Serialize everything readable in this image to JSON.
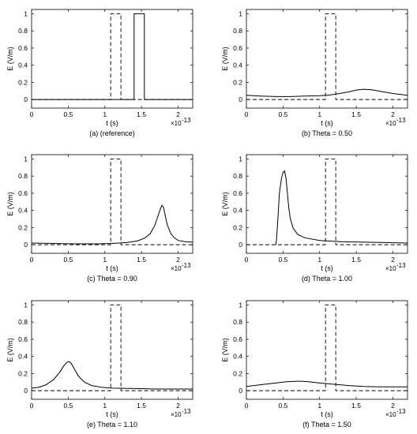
{
  "chart_data": [
    {
      "type": "line",
      "caption": "(a) (reference)",
      "xlabel": "t (s)",
      "ylabel": "E (V/m)",
      "x_multiplier_label": "×10",
      "x_multiplier_exp": "-13",
      "xlim": [
        0,
        2.2
      ],
      "ylim": [
        -0.1,
        1.05
      ],
      "xticks": [
        "0",
        "0.5",
        "1",
        "1.5",
        "2"
      ],
      "yticks": [
        "0",
        "0.2",
        "0.4",
        "0.6",
        "0.8",
        "1"
      ],
      "series": [
        {
          "style": "dashed",
          "x": [
            0,
            1.08,
            1.08,
            1.22,
            1.22,
            2.2
          ],
          "y": [
            0,
            0,
            1,
            1,
            0,
            0
          ]
        },
        {
          "style": "solid",
          "x": [
            0,
            1.4,
            1.4,
            1.4,
            1.4,
            1.54,
            1.54,
            1.54,
            1.54,
            2.2
          ],
          "y": [
            0,
            0,
            0,
            1,
            1,
            1,
            1,
            0,
            0,
            0
          ]
        }
      ]
    },
    {
      "type": "line",
      "caption": "(b) Theta = 0.50",
      "xlabel": "t (s)",
      "ylabel": "E (V/m)",
      "x_multiplier_label": "×10",
      "x_multiplier_exp": "-13",
      "xlim": [
        0,
        2.2
      ],
      "ylim": [
        -0.1,
        1.05
      ],
      "xticks": [
        "0",
        "0.5",
        "1",
        "1.5",
        "2"
      ],
      "yticks": [
        "0",
        "0.2",
        "0.4",
        "0.6",
        "0.8",
        "1"
      ],
      "series": [
        {
          "style": "dashed",
          "x": [
            0,
            1.08,
            1.08,
            1.22,
            1.22,
            2.2
          ],
          "y": [
            0,
            0,
            1,
            1,
            0,
            0
          ]
        },
        {
          "style": "solid",
          "x": [
            0,
            0.2,
            0.4,
            0.6,
            0.8,
            1.0,
            1.1,
            1.2,
            1.3,
            1.4,
            1.5,
            1.6,
            1.7,
            1.8,
            1.9,
            2.0,
            2.1,
            2.2
          ],
          "y": [
            0.05,
            0.04,
            0.035,
            0.035,
            0.04,
            0.045,
            0.05,
            0.06,
            0.075,
            0.09,
            0.11,
            0.12,
            0.115,
            0.1,
            0.085,
            0.07,
            0.06,
            0.05
          ]
        }
      ]
    },
    {
      "type": "line",
      "caption": "(c) Theta = 0.90",
      "xlabel": "t (s)",
      "ylabel": "E (V/m)",
      "x_multiplier_label": "×10",
      "x_multiplier_exp": "-13",
      "xlim": [
        0,
        2.2
      ],
      "ylim": [
        -0.1,
        1.05
      ],
      "xticks": [
        "0",
        "0.5",
        "1",
        "1.5",
        "2"
      ],
      "yticks": [
        "0",
        "0.2",
        "0.4",
        "0.6",
        "0.8",
        "1"
      ],
      "series": [
        {
          "style": "dashed",
          "x": [
            0,
            1.08,
            1.08,
            1.22,
            1.22,
            2.2
          ],
          "y": [
            0,
            0,
            1,
            1,
            0,
            0
          ]
        },
        {
          "style": "solid",
          "x": [
            0,
            0.3,
            0.6,
            0.9,
            1.1,
            1.3,
            1.45,
            1.55,
            1.62,
            1.68,
            1.72,
            1.76,
            1.78,
            1.8,
            1.82,
            1.85,
            1.9,
            1.95,
            2.0,
            2.1,
            2.2
          ],
          "y": [
            0.02,
            0.015,
            0.01,
            0.01,
            0.015,
            0.025,
            0.045,
            0.08,
            0.13,
            0.22,
            0.32,
            0.42,
            0.46,
            0.44,
            0.36,
            0.24,
            0.13,
            0.08,
            0.05,
            0.035,
            0.03
          ]
        }
      ]
    },
    {
      "type": "line",
      "caption": "(d) Theta = 1.00",
      "xlabel": "t (s)",
      "ylabel": "E (V/m)",
      "x_multiplier_label": "×10",
      "x_multiplier_exp": "-13",
      "xlim": [
        0,
        2.2
      ],
      "ylim": [
        -0.1,
        1.05
      ],
      "xticks": [
        "0",
        "0.5",
        "1",
        "1.5",
        "2"
      ],
      "yticks": [
        "0",
        "0.2",
        "0.4",
        "0.6",
        "0.8",
        "1"
      ],
      "series": [
        {
          "style": "dashed",
          "x": [
            0,
            1.08,
            1.08,
            1.22,
            1.22,
            2.2
          ],
          "y": [
            0,
            0,
            1,
            1,
            0,
            0
          ]
        },
        {
          "style": "solid",
          "x": [
            0.4,
            0.41,
            0.43,
            0.45,
            0.48,
            0.5,
            0.52,
            0.54,
            0.56,
            0.58,
            0.6,
            0.64,
            0.7,
            0.8,
            1.0,
            1.3,
            1.6,
            1.9,
            2.2
          ],
          "y": [
            0,
            0.05,
            0.3,
            0.6,
            0.78,
            0.84,
            0.86,
            0.78,
            0.6,
            0.42,
            0.3,
            0.19,
            0.12,
            0.08,
            0.05,
            0.035,
            0.03,
            0.025,
            0.02
          ]
        }
      ]
    },
    {
      "type": "line",
      "caption": "(e) Theta = 1.10",
      "xlabel": "t (s)",
      "ylabel": "E (V/m)",
      "x_multiplier_label": "×10",
      "x_multiplier_exp": "-13",
      "xlim": [
        0,
        2.2
      ],
      "ylim": [
        -0.1,
        1.05
      ],
      "xticks": [
        "0",
        "0.5",
        "1",
        "1.5",
        "2"
      ],
      "yticks": [
        "0",
        "0.2",
        "0.4",
        "0.6",
        "0.8",
        "1"
      ],
      "series": [
        {
          "style": "dashed",
          "x": [
            0,
            1.08,
            1.08,
            1.22,
            1.22,
            2.2
          ],
          "y": [
            0,
            0,
            1,
            1,
            0,
            0
          ]
        },
        {
          "style": "solid",
          "x": [
            0,
            0.1,
            0.2,
            0.3,
            0.38,
            0.44,
            0.48,
            0.51,
            0.54,
            0.58,
            0.64,
            0.72,
            0.82,
            0.95,
            1.1,
            1.4,
            1.7,
            2.0,
            2.2
          ],
          "y": [
            0.03,
            0.04,
            0.07,
            0.13,
            0.21,
            0.29,
            0.33,
            0.34,
            0.32,
            0.26,
            0.17,
            0.1,
            0.06,
            0.04,
            0.03,
            0.025,
            0.02,
            0.02,
            0.02
          ]
        }
      ]
    },
    {
      "type": "line",
      "caption": "(f) Theta = 1.50",
      "xlabel": "t (s)",
      "ylabel": "E (V/m)",
      "x_multiplier_label": "×10",
      "x_multiplier_exp": "-13",
      "xlim": [
        0,
        2.2
      ],
      "ylim": [
        -0.1,
        1.05
      ],
      "xticks": [
        "0",
        "0.5",
        "1",
        "1.5",
        "2"
      ],
      "yticks": [
        "0",
        "0.2",
        "0.4",
        "0.6",
        "0.8",
        "1"
      ],
      "series": [
        {
          "style": "dashed",
          "x": [
            0,
            1.08,
            1.08,
            1.22,
            1.22,
            2.2
          ],
          "y": [
            0,
            0,
            1,
            1,
            0,
            0
          ]
        },
        {
          "style": "solid",
          "x": [
            0,
            0.2,
            0.4,
            0.55,
            0.7,
            0.75,
            0.85,
            1.0,
            1.2,
            1.4,
            1.6,
            1.8,
            2.0,
            2.2
          ],
          "y": [
            0.05,
            0.07,
            0.09,
            0.105,
            0.11,
            0.11,
            0.105,
            0.09,
            0.075,
            0.06,
            0.05,
            0.045,
            0.045,
            0.045
          ]
        }
      ]
    }
  ]
}
